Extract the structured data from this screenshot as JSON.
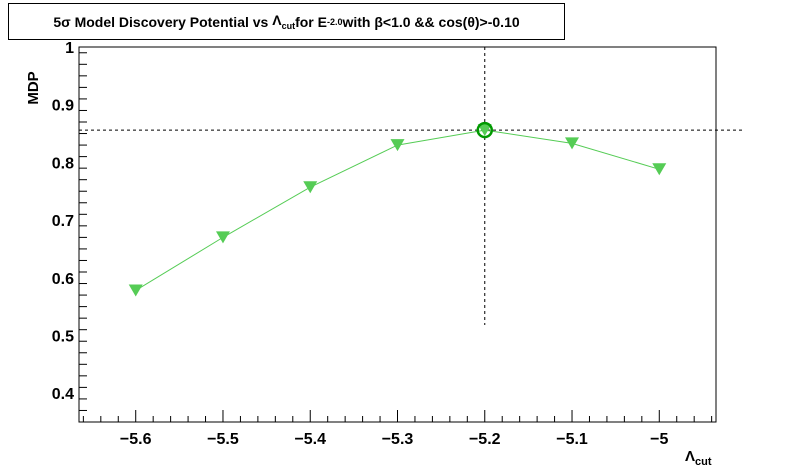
{
  "title": {
    "p1": "5σ Model Discovery Potential vs ",
    "sym": "Λ",
    "sub": "cut",
    "p2": " for E",
    "sup": "-2.0",
    "p3": " with  β<1.0 && cos(θ)>-0.10"
  },
  "chart_data": {
    "type": "line",
    "x": [
      -5.6,
      -5.5,
      -5.4,
      -5.3,
      -5.2,
      -5.1,
      -5.0
    ],
    "series": [
      {
        "values": [
          0.578,
          0.67,
          0.757,
          0.83,
          0.856,
          0.833,
          0.788
        ]
      }
    ],
    "best": {
      "x": -5.2,
      "y": 0.856
    },
    "xlim": [
      -5.665,
      -4.935
    ],
    "ylim": [
      0.35,
      1.0
    ],
    "xticks": [
      -5.6,
      -5.5,
      -5.4,
      -5.3,
      -5.2,
      -5.1,
      -5.0
    ],
    "xtick_labels": [
      "−5.6",
      "−5.5",
      "−5.4",
      "−5.3",
      "−5.2",
      "−5.1",
      "−5"
    ],
    "yticks": [
      0.4,
      0.5,
      0.6,
      0.7,
      0.8,
      0.9,
      1.0
    ],
    "ytick_labels": [
      "0.4",
      "0.5",
      "0.6",
      "0.7",
      "0.8",
      "0.9",
      "1"
    ],
    "ylabel": "MDP",
    "xlabel": {
      "sym": "Λ",
      "sub": "cut"
    },
    "grid": false,
    "colors": {
      "series": "#55cc55",
      "best_marker": "#009900",
      "axis": "#000000"
    }
  }
}
